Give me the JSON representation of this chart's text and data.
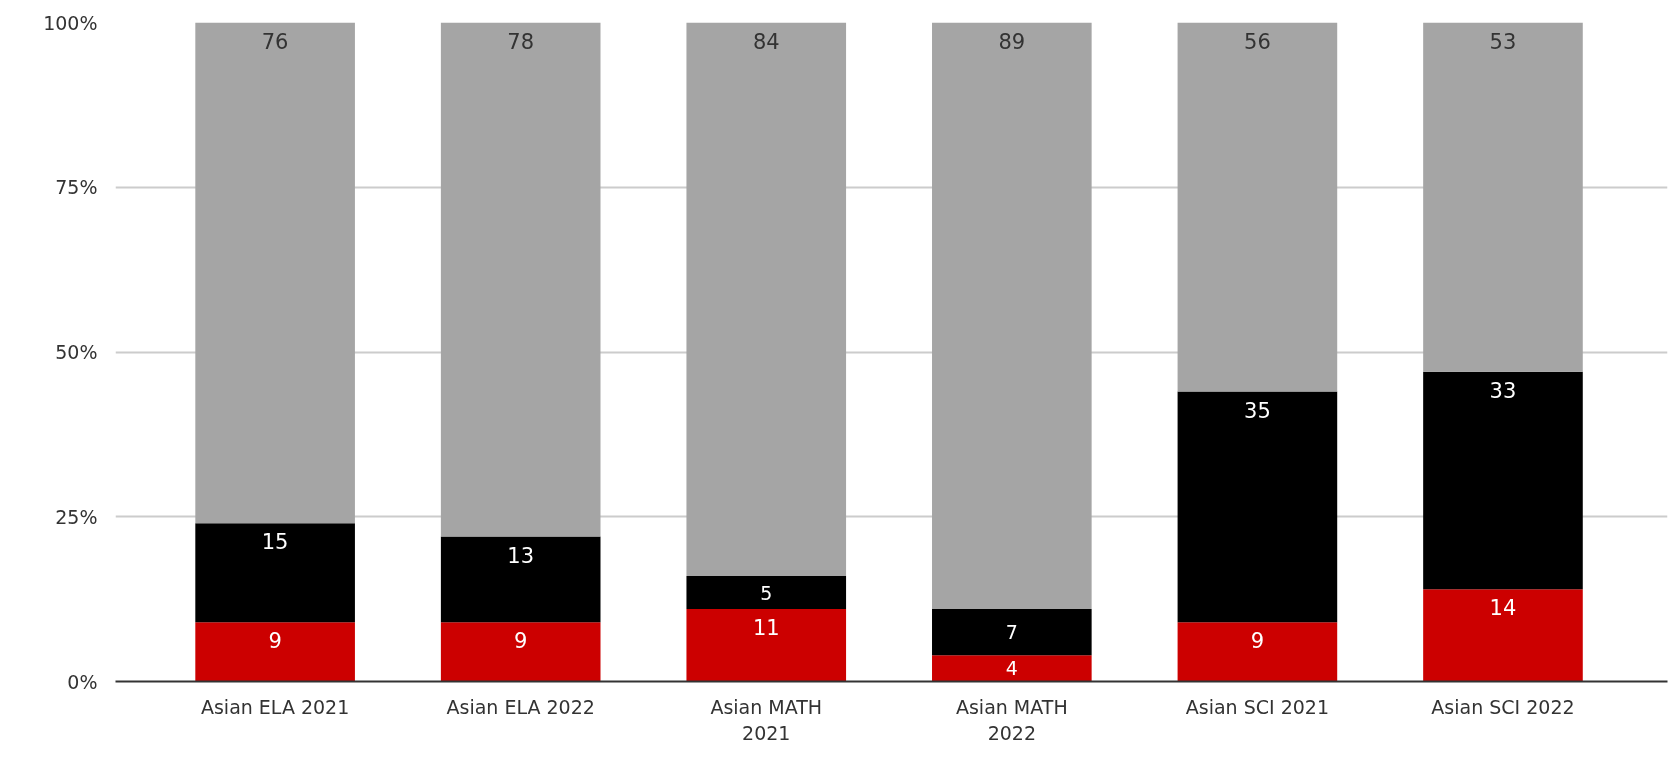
{
  "chart_data": {
    "type": "bar",
    "stacked": true,
    "data_labels": true,
    "grid": "y",
    "categories": [
      "Asian ELA 2021",
      "Asian ELA 2022",
      "Asian MATH 2021",
      "Asian MATH 2022",
      "Asian SCI 2021",
      "Asian SCI 2022"
    ],
    "series": [
      {
        "color": "#cc0000",
        "values": [
          9,
          9,
          11,
          4,
          9,
          14
        ]
      },
      {
        "color": "#000000",
        "values": [
          15,
          13,
          5,
          7,
          35,
          33
        ]
      },
      {
        "color": "#a5a5a5",
        "values": [
          76,
          78,
          84,
          89,
          56,
          53
        ]
      }
    ],
    "ylim": [
      0,
      100
    ],
    "yticks": [
      {
        "value": 0,
        "label": "0%"
      },
      {
        "value": 25,
        "label": "25%"
      },
      {
        "value": 50,
        "label": "50%"
      },
      {
        "value": 75,
        "label": "75%"
      },
      {
        "value": 100,
        "label": "100%"
      }
    ]
  }
}
